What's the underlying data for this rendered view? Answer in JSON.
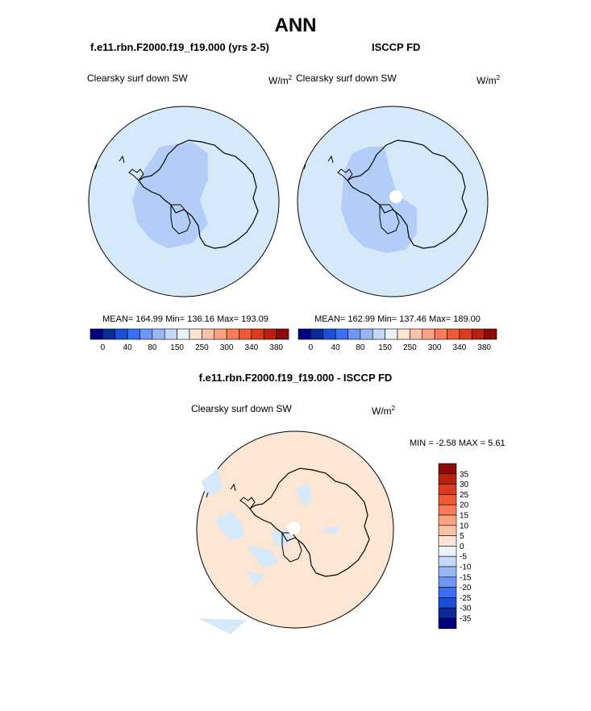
{
  "figure": {
    "title": "ANN",
    "panels": [
      {
        "id": "model",
        "heading": "f.e11.rbn.F2000.f19_f19.000 (yrs 2-5)",
        "variable": "Clearsky surf down SW",
        "unit_base": "W/m",
        "unit_exp": "2",
        "stats": "MEAN= 164.99  Min= 136.16  Max= 193.09",
        "colorbar": {
          "colors": [
            "#00007f",
            "#0a2a9a",
            "#1a4fd6",
            "#3a6ef5",
            "#6f96f5",
            "#9ab7f5",
            "#c5d8f7",
            "#eaf1fb",
            "#fde3d2",
            "#fcc2a8",
            "#fca182",
            "#f97c57",
            "#f05a33",
            "#dc3b1e",
            "#b8200f",
            "#8a0a05"
          ],
          "tick_labels": [
            "0",
            "40",
            "80",
            "150",
            "250",
            "300",
            "340",
            "380"
          ]
        },
        "map": {
          "ocean_color": "#d6e9fb",
          "region_color": "#b3cdf8",
          "missing_disk": false
        }
      },
      {
        "id": "obs",
        "heading": "ISCCP FD",
        "variable": "Clearsky surf down SW",
        "unit_base": "W/m",
        "unit_exp": "2",
        "stats": "MEAN= 162.99  Min= 137.46  Max= 189.00",
        "colorbar": {
          "colors": [
            "#00007f",
            "#0a2a9a",
            "#1a4fd6",
            "#3a6ef5",
            "#6f96f5",
            "#9ab7f5",
            "#c5d8f7",
            "#eaf1fb",
            "#fde3d2",
            "#fcc2a8",
            "#fca182",
            "#f97c57",
            "#f05a33",
            "#dc3b1e",
            "#b8200f",
            "#8a0a05"
          ],
          "tick_labels": [
            "0",
            "40",
            "80",
            "150",
            "250",
            "300",
            "340",
            "380"
          ]
        },
        "map": {
          "ocean_color": "#d6e9fb",
          "region_color": "#b3cdf8",
          "missing_disk": true
        }
      },
      {
        "id": "diff",
        "heading": "f.e11.rbn.F2000.f19_f19.000 - ISCCP FD",
        "variable": "Clearsky surf down SW",
        "unit_base": "W/m",
        "unit_exp": "2",
        "stats": "MIN =  -2.58 MAX =   5.61",
        "colorbar": {
          "colors": [
            "#8a0a05",
            "#b8200f",
            "#dc3b1e",
            "#f05a33",
            "#f97c57",
            "#fca182",
            "#fcc2a8",
            "#fde3d2",
            "#eaf1fb",
            "#c5d8f7",
            "#9ab7f5",
            "#6f96f5",
            "#3a6ef5",
            "#1a4fd6",
            "#0a2a9a",
            "#00007f"
          ],
          "tick_labels": [
            "35",
            "30",
            "25",
            "20",
            "15",
            "10",
            "5",
            "0",
            "-5",
            "-10",
            "-15",
            "-20",
            "-25",
            "-30",
            "-35"
          ]
        },
        "map": {
          "ocean_color": "#fde6d4",
          "region_color": "#d6e9fb",
          "missing_disk": true
        }
      }
    ]
  }
}
